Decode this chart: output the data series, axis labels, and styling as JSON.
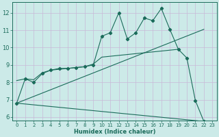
{
  "xlabel": "Humidex (Indice chaleur)",
  "bg_color": "#cceae8",
  "grid_color": "#c8b8d8",
  "line_color": "#1a6b5a",
  "xlim": [
    -0.5,
    23.5
  ],
  "ylim": [
    5.8,
    12.6
  ],
  "xticks": [
    0,
    1,
    2,
    3,
    4,
    5,
    6,
    7,
    8,
    9,
    10,
    11,
    12,
    13,
    14,
    15,
    16,
    17,
    18,
    19,
    20,
    21,
    22,
    23
  ],
  "yticks": [
    6,
    7,
    8,
    9,
    10,
    11,
    12
  ],
  "series_jagged": {
    "x": [
      0,
      1,
      2,
      3,
      4,
      5,
      6,
      7,
      8,
      9,
      10,
      11,
      12,
      13,
      14,
      15,
      16,
      17,
      18,
      19,
      20,
      21,
      22
    ],
    "y": [
      6.8,
      8.2,
      8.0,
      8.5,
      8.7,
      8.8,
      8.8,
      8.85,
      8.9,
      9.0,
      10.65,
      10.85,
      12.0,
      10.5,
      10.85,
      11.7,
      11.55,
      12.25,
      11.05,
      9.9,
      9.4,
      6.95,
      5.75
    ]
  },
  "series_smooth": {
    "x": [
      0,
      1,
      2,
      3,
      4,
      5,
      6,
      7,
      8,
      9,
      10,
      11,
      12,
      13,
      14,
      15,
      16,
      17,
      18,
      19
    ],
    "y": [
      8.1,
      8.2,
      8.15,
      8.55,
      8.7,
      8.75,
      8.8,
      8.85,
      8.9,
      9.05,
      9.45,
      9.5,
      9.55,
      9.6,
      9.65,
      9.7,
      9.75,
      9.8,
      9.85,
      9.9
    ]
  },
  "line_up": {
    "x": [
      0,
      22
    ],
    "y": [
      6.8,
      11.05
    ]
  },
  "line_down": {
    "x": [
      0,
      22
    ],
    "y": [
      6.8,
      5.75
    ]
  }
}
